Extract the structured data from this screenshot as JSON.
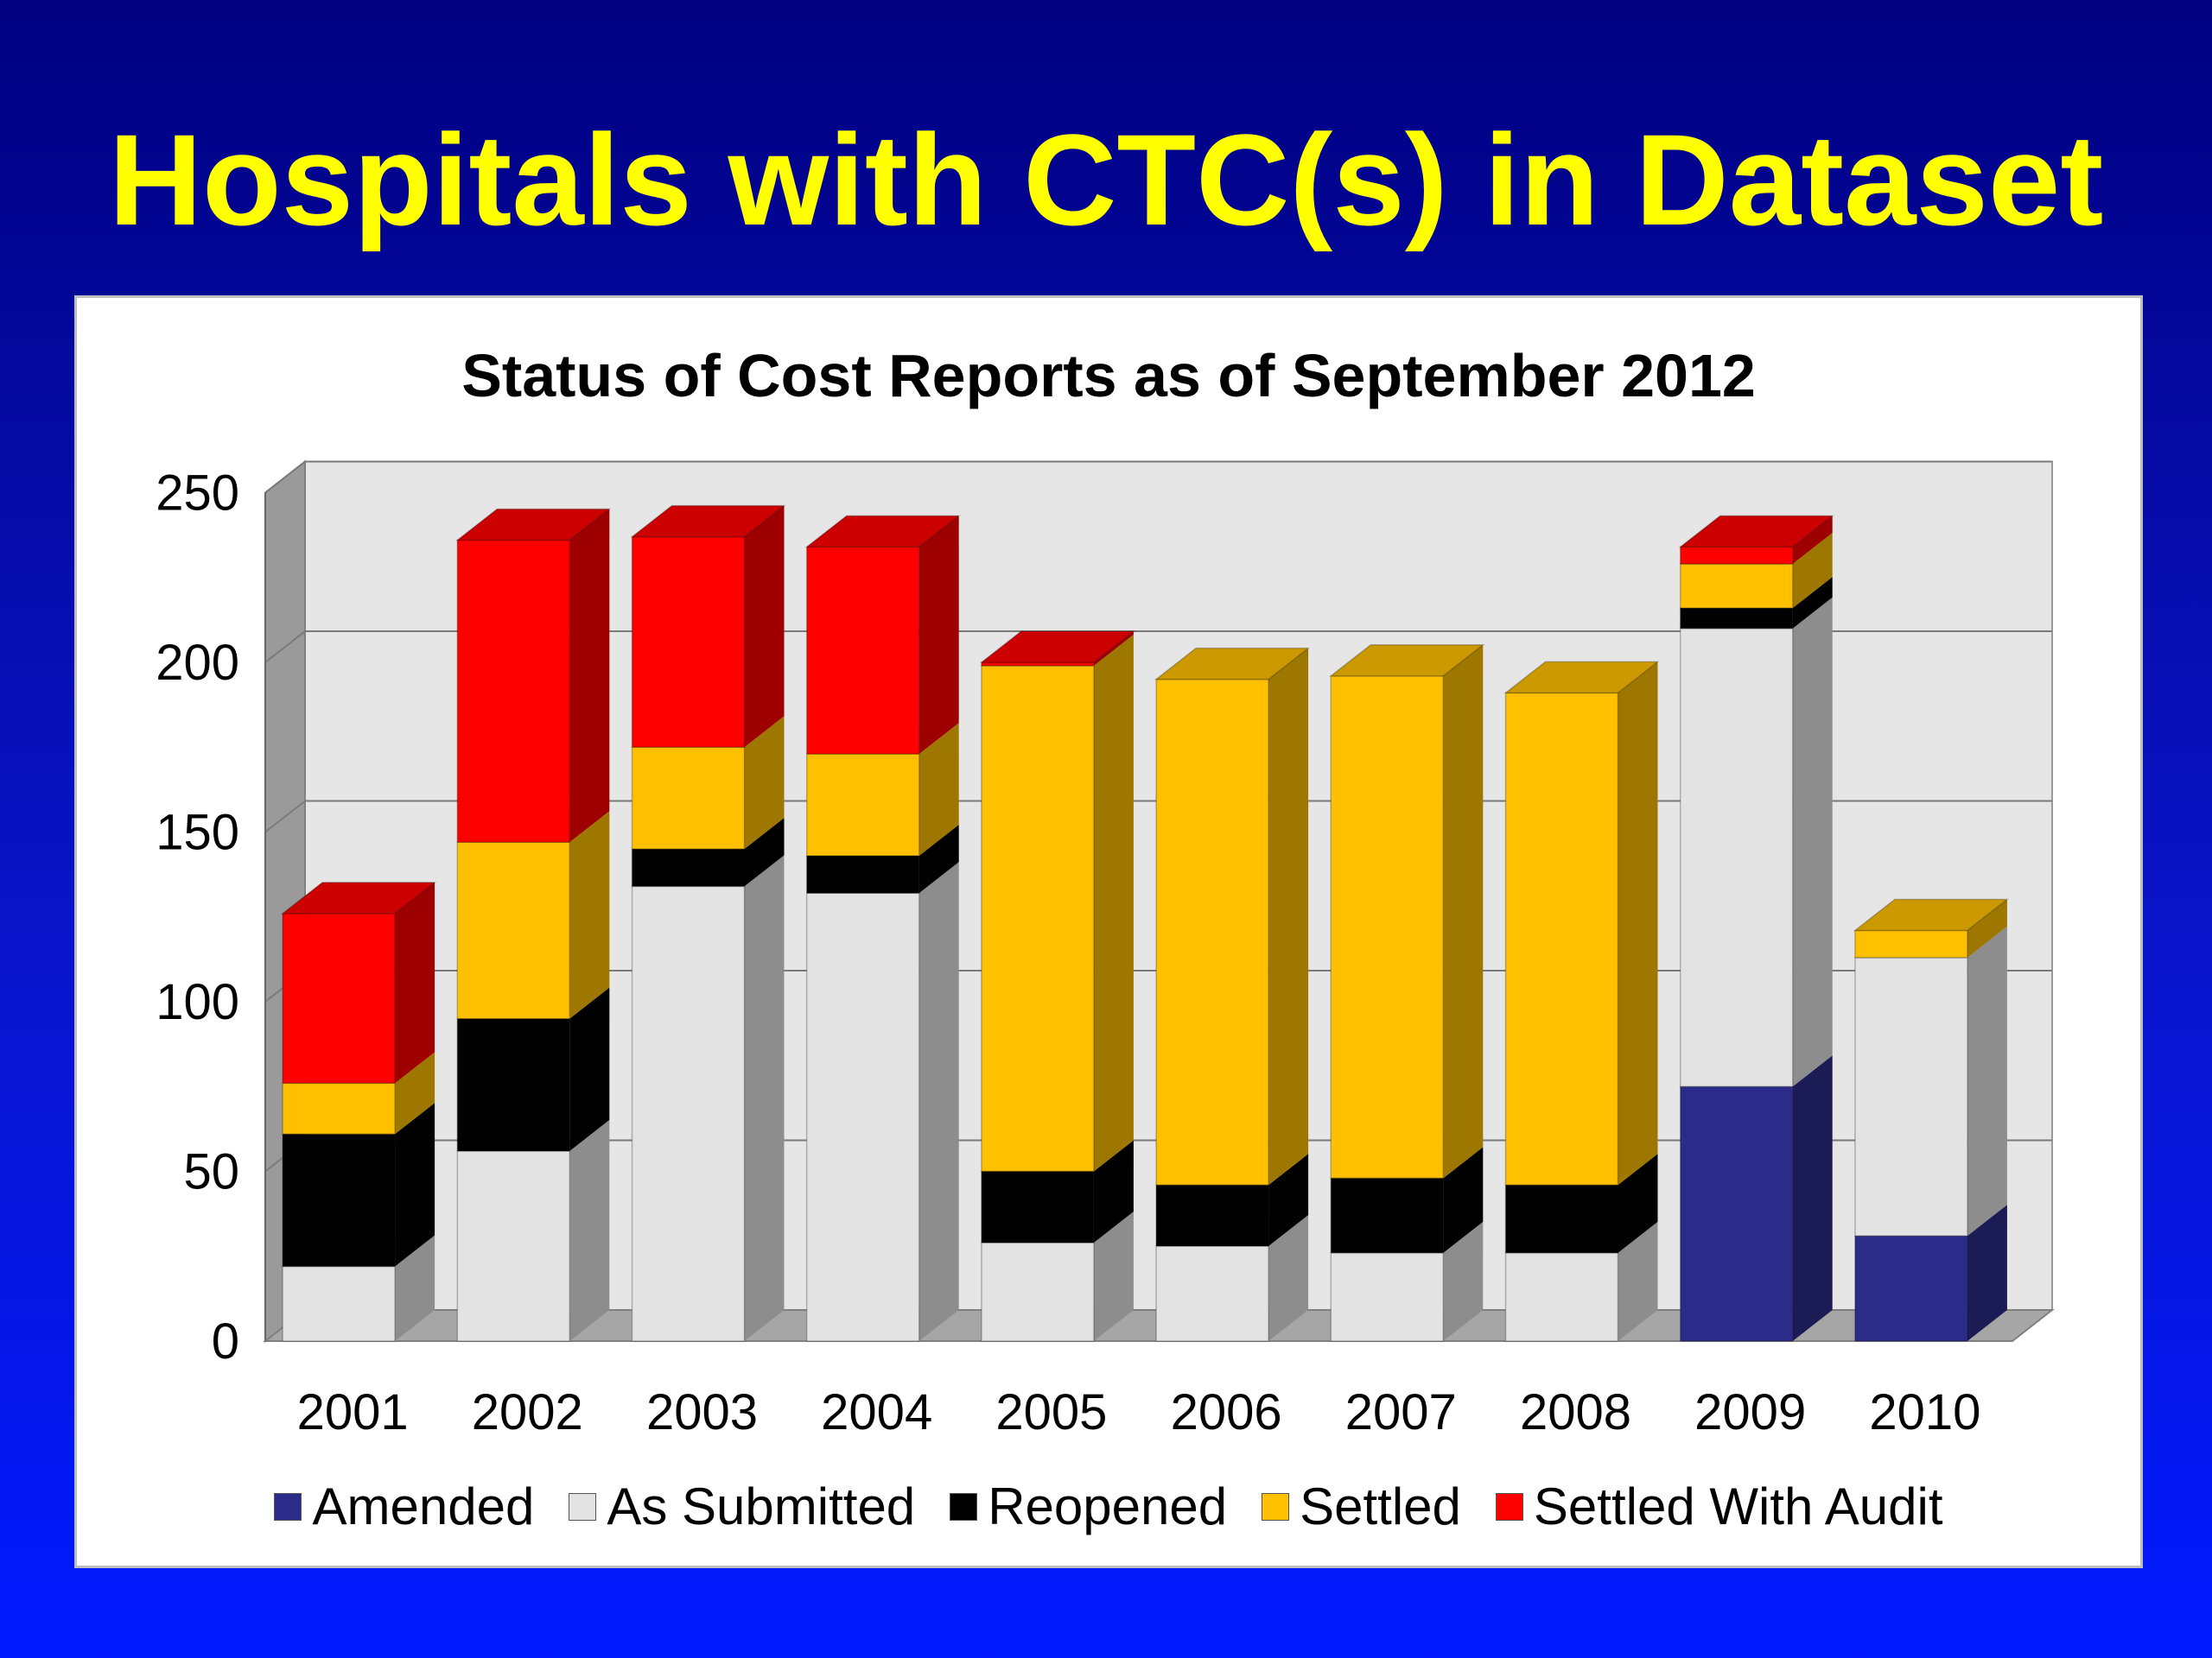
{
  "slide": {
    "title": "Hospitals with CTC(s) in Dataset"
  },
  "colors": {
    "Amended": "#2b2b8a",
    "As Submitted": "#e3e3e3",
    "Reopened": "#000000",
    "Settled": "#ffc000",
    "Settled With Audit": "#ff0000"
  },
  "chart_data": {
    "type": "bar",
    "stacked": true,
    "three_d": true,
    "title": "Status of Cost Reports as of September 2012",
    "xlabel": "",
    "ylabel": "",
    "ylim": [
      0,
      250
    ],
    "yticks": [
      0,
      50,
      100,
      150,
      200,
      250
    ],
    "grid": true,
    "legend_position": "bottom",
    "categories": [
      "2001",
      "2002",
      "2003",
      "2004",
      "2005",
      "2006",
      "2007",
      "2008",
      "2009",
      "2010"
    ],
    "series": [
      {
        "name": "Amended",
        "values": [
          0,
          0,
          0,
          0,
          0,
          0,
          0,
          0,
          75,
          31
        ]
      },
      {
        "name": "As Submitted",
        "values": [
          22,
          56,
          134,
          132,
          29,
          28,
          26,
          26,
          135,
          82
        ]
      },
      {
        "name": "Reopened",
        "values": [
          39,
          39,
          11,
          11,
          21,
          18,
          22,
          20,
          6,
          0
        ]
      },
      {
        "name": "Settled",
        "values": [
          15,
          52,
          30,
          30,
          149,
          149,
          148,
          145,
          13,
          8
        ]
      },
      {
        "name": "Settled With Audit",
        "values": [
          50,
          89,
          62,
          61,
          1,
          0,
          0,
          0,
          5,
          0
        ]
      }
    ]
  }
}
